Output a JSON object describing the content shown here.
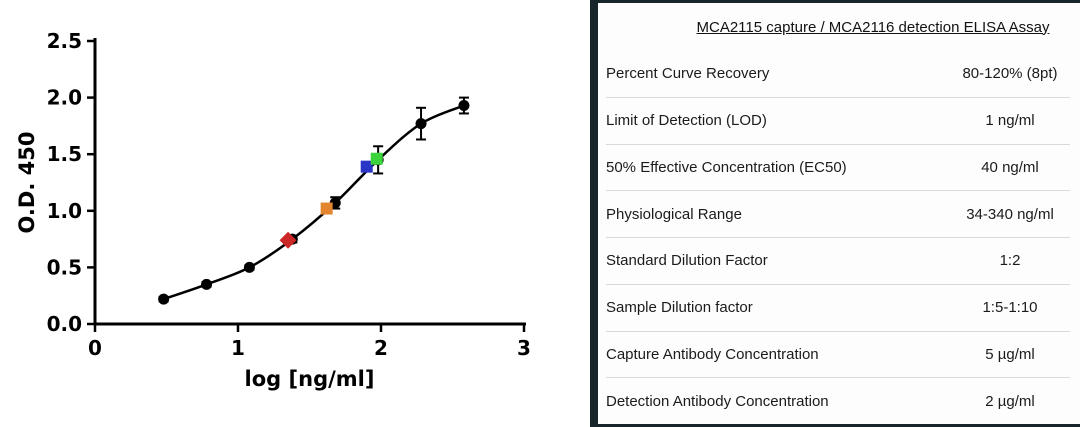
{
  "chart_data": {
    "type": "scatter",
    "title": "",
    "xlabel": "log [ng/ml]",
    "ylabel": "O.D. 450",
    "xlim": [
      0,
      3
    ],
    "ylim": [
      0,
      2.5
    ],
    "xticks": [
      "0",
      "1",
      "2",
      "3"
    ],
    "yticks": [
      "0.0",
      "0.5",
      "1.0",
      "1.5",
      "2.0",
      "2.5"
    ],
    "grid": false,
    "legend": "none",
    "series": [
      {
        "name": "standard-curve",
        "marker": "circle",
        "color": "#000000",
        "line": true,
        "x": [
          0.48,
          0.78,
          1.08,
          1.38,
          1.68,
          1.98,
          2.28,
          2.58
        ],
        "y": [
          0.22,
          0.35,
          0.5,
          0.75,
          1.07,
          1.45,
          1.77,
          1.93
        ],
        "yerr": [
          0.02,
          0.02,
          0.02,
          0.03,
          0.05,
          0.12,
          0.14,
          0.07
        ]
      },
      {
        "name": "sample-red",
        "marker": "diamond",
        "color": "#cc2727",
        "line": false,
        "x": [
          1.35
        ],
        "y": [
          0.74
        ]
      },
      {
        "name": "sample-orange",
        "marker": "square",
        "color": "#e2852e",
        "line": false,
        "x": [
          1.62
        ],
        "y": [
          1.02
        ]
      },
      {
        "name": "sample-blue",
        "marker": "square",
        "color": "#2a35c8",
        "line": false,
        "x": [
          1.9
        ],
        "y": [
          1.39
        ]
      },
      {
        "name": "sample-green",
        "marker": "square",
        "color": "#3cd43c",
        "line": false,
        "x": [
          1.97
        ],
        "y": [
          1.46
        ]
      }
    ]
  },
  "table": {
    "title": "MCA2115 capture / MCA2116 detection ELISA Assay",
    "rows": [
      {
        "label": "Percent Curve Recovery",
        "value": "80-120% (8pt)"
      },
      {
        "label": "Limit of Detection (LOD)",
        "value": "1 ng/ml"
      },
      {
        "label": "50% Effective Concentration (EC50)",
        "value": "40 ng/ml"
      },
      {
        "label": "Physiological Range",
        "value": "34-340 ng/ml"
      },
      {
        "label": "Standard Dilution Factor",
        "value": "1:2"
      },
      {
        "label": "Sample Dilution factor",
        "value": "1:5-1:10"
      },
      {
        "label": "Capture Antibody Concentration",
        "value": "5 µg/ml"
      },
      {
        "label": "Detection Antibody Concentration",
        "value": "2 µg/ml"
      }
    ]
  },
  "colors": {
    "accent_dark": "#18262c",
    "row_separator": "#d9d9d9",
    "curve": "#000000"
  }
}
